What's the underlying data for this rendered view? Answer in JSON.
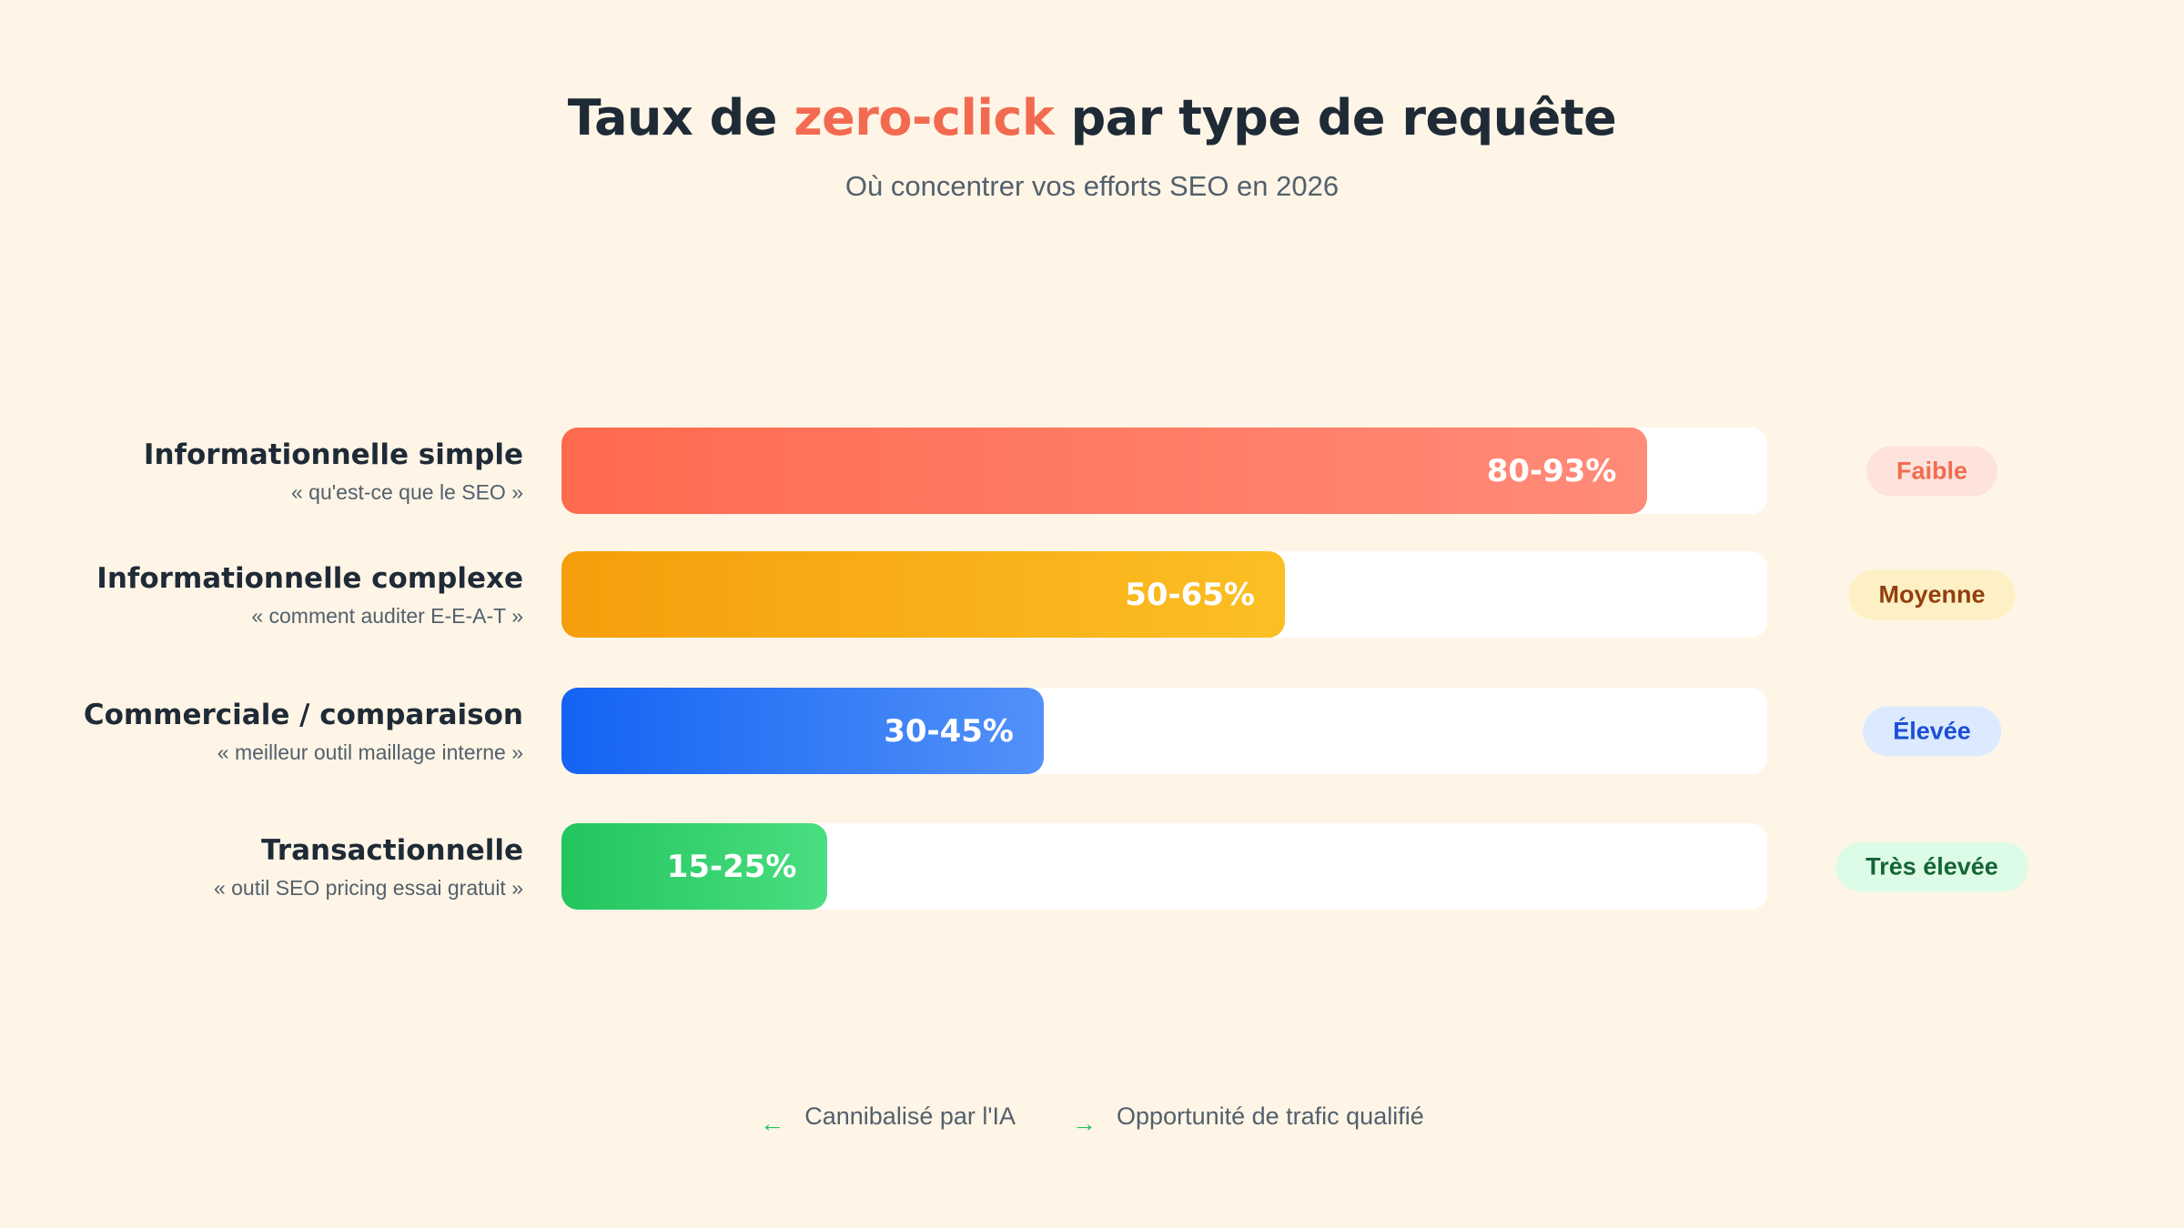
{
  "chart_data": {
    "type": "bar",
    "orientation": "horizontal",
    "title_parts": [
      "Taux de ",
      "zero-click",
      " par type de requête"
    ],
    "title_highlight_index": 1,
    "title_highlight_color": "#f26b50",
    "subtitle": "Où concentrer vos efforts SEO en 2026",
    "categories": [
      "Informationnelle simple",
      "Informationnelle complexe",
      "Commerciale / comparaison",
      "Transactionnelle"
    ],
    "examples": [
      "« qu'est-ce que le SEO »",
      "« comment auditer E-E-A-T »",
      "« meilleur outil maillage interne »",
      "« outil SEO pricing essai gratuit »"
    ],
    "values": [
      90,
      60,
      40,
      22
    ],
    "range_labels": [
      "80-93%",
      "50-65%",
      "30-45%",
      "15-25%"
    ],
    "xlim": [
      0,
      100
    ],
    "colors": [
      [
        "#ff6a4f",
        "#ff8b79"
      ],
      [
        "#f59e0b",
        "#fbbf24"
      ],
      [
        "#1463f3",
        "#5291f8"
      ],
      [
        "#22c55e",
        "#4ade80"
      ]
    ],
    "priorities": [
      "Faible",
      "Moyenne",
      "Élevée",
      "Très élevée"
    ],
    "priority_colors": [
      {
        "background": "#fde3dc",
        "text": "#f26b50"
      },
      {
        "background": "#fdf0c4",
        "text": "#92400e"
      },
      {
        "background": "#dbeafe",
        "text": "#1d4ed8"
      },
      {
        "background": "#dcfce7",
        "text": "#166534"
      }
    ],
    "legend": [
      {
        "symbol": "←",
        "label": "Cannibalisé par l'IA"
      },
      {
        "symbol": "→",
        "label": "Opportunité de trafic qualifié"
      }
    ]
  }
}
